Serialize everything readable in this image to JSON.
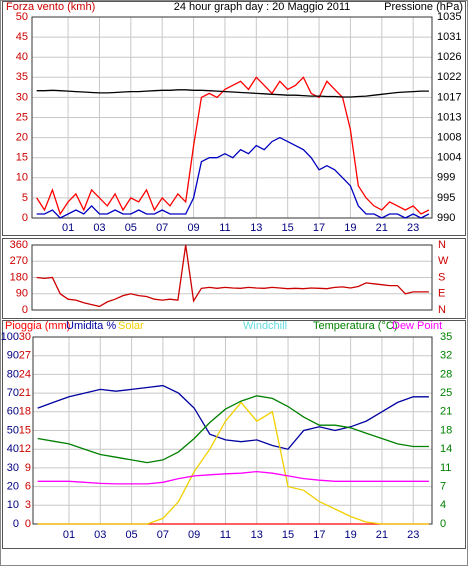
{
  "chart_data": [
    {
      "type": "line",
      "title": "24 hour graph day : 20 Maggio 2011",
      "ylabel": "Forza vento (kmh)",
      "y2label": "Pressione (hPa)",
      "x": [
        -1,
        -0.5,
        0,
        0.5,
        1,
        1.5,
        2,
        2.5,
        3,
        3.5,
        4,
        4.5,
        5,
        5.5,
        6,
        6.5,
        7,
        7.5,
        8,
        8.5,
        9,
        9.5,
        10,
        10.5,
        11,
        11.5,
        12,
        12.5,
        13,
        13.5,
        14,
        14.5,
        15,
        15.5,
        16,
        16.5,
        17,
        17.5,
        18,
        18.5,
        19,
        19.5,
        20,
        20.5,
        21,
        21.5,
        22,
        22.5,
        23,
        23.5,
        24
      ],
      "xlim": [
        -1.3,
        24.2
      ],
      "xticks": [
        {
          "value": 1,
          "label": "01"
        },
        {
          "value": 3,
          "label": "03"
        },
        {
          "value": 5,
          "label": "05"
        },
        {
          "value": 7,
          "label": "07"
        },
        {
          "value": 9,
          "label": "09"
        },
        {
          "value": 11,
          "label": "11"
        },
        {
          "value": 13,
          "label": "13"
        },
        {
          "value": 15,
          "label": "15"
        },
        {
          "value": 17,
          "label": "17"
        },
        {
          "value": 19,
          "label": "19"
        },
        {
          "value": 21,
          "label": "21"
        },
        {
          "value": 23,
          "label": "23"
        }
      ],
      "ylim": [
        0,
        50
      ],
      "yticks": [
        0,
        5,
        10,
        15,
        20,
        25,
        30,
        35,
        40,
        45,
        50
      ],
      "ytick_color": "#cc0000",
      "y2lim": [
        990,
        1035
      ],
      "y2ticks": [
        990,
        {
          "value": 994.5,
          "label": "995"
        },
        999,
        {
          "value": 1003.5,
          "label": "1004"
        },
        1008,
        {
          "value": 1012.5,
          "label": "1013"
        },
        1017,
        {
          "value": 1021.5,
          "label": "1022"
        },
        1026,
        {
          "value": 1030.5,
          "label": "1031"
        },
        1035
      ],
      "y2tick_color": "#000000",
      "grid": true,
      "series": [
        {
          "color": "#ff0000",
          "values": [
            5,
            2,
            7,
            1,
            4,
            6,
            2,
            7,
            5,
            3,
            6,
            2,
            5,
            4,
            7,
            2,
            5,
            3,
            6,
            4,
            18,
            30,
            31,
            30,
            32,
            33,
            34,
            32,
            35,
            33,
            31,
            34,
            32,
            33,
            35,
            31,
            30,
            34,
            32,
            30,
            22,
            8,
            5,
            3,
            2,
            4,
            3,
            2,
            3,
            1,
            2
          ]
        },
        {
          "color": "#0000c0",
          "values": [
            1,
            1,
            2,
            0,
            1,
            2,
            1,
            3,
            1,
            1,
            2,
            1,
            1,
            2,
            1,
            1,
            2,
            1,
            1,
            1,
            5,
            14,
            15,
            15,
            16,
            15,
            17,
            16,
            18,
            17,
            19,
            20,
            19,
            18,
            17,
            15,
            12,
            13,
            12,
            10,
            8,
            3,
            1,
            1,
            0,
            1,
            1,
            0,
            1,
            0,
            1
          ]
        },
        {
          "color": "#000000",
          "axis": "y2",
          "values": [
            1018.5,
            1018.5,
            1018.6,
            1018.5,
            1018.4,
            1018.3,
            1018.2,
            1018.1,
            1018.0,
            1018.0,
            1018.1,
            1018.2,
            1018.3,
            1018.3,
            1018.4,
            1018.5,
            1018.6,
            1018.6,
            1018.7,
            1018.7,
            1018.6,
            1018.6,
            1018.5,
            1018.4,
            1018.3,
            1018.2,
            1018.1,
            1018.0,
            1017.9,
            1017.8,
            1017.7,
            1017.6,
            1017.5,
            1017.5,
            1017.4,
            1017.3,
            1017.3,
            1017.2,
            1017.2,
            1017.1,
            1017.1,
            1017.2,
            1017.3,
            1017.5,
            1017.7,
            1017.9,
            1018.1,
            1018.2,
            1018.3,
            1018.4,
            1018.4
          ]
        }
      ]
    },
    {
      "type": "line",
      "x": [
        -1,
        -0.5,
        0,
        0.5,
        1,
        1.5,
        2,
        2.5,
        3,
        3.5,
        4,
        4.5,
        5,
        5.5,
        6,
        6.5,
        7,
        7.5,
        8,
        8.5,
        9,
        9.5,
        10,
        10.5,
        11,
        11.5,
        12,
        12.5,
        13,
        13.5,
        14,
        14.5,
        15,
        15.5,
        16,
        16.5,
        17,
        17.5,
        18,
        18.5,
        19,
        19.5,
        20,
        20.5,
        21,
        21.5,
        22,
        22.5,
        23,
        23.5,
        24
      ],
      "xlim": [
        -1.3,
        24.2
      ],
      "ylim": [
        0,
        360
      ],
      "yticks": [
        0,
        90,
        180,
        270,
        360
      ],
      "ytick_color": "#cc0000",
      "y2lim": [
        0,
        360
      ],
      "y2ticks": [
        {
          "value": 0,
          "label": "N"
        },
        {
          "value": 90,
          "label": "E"
        },
        {
          "value": 180,
          "label": "S"
        },
        {
          "value": 270,
          "label": "W"
        },
        {
          "value": 360,
          "label": "N"
        }
      ],
      "y2tick_color": "#cc0000",
      "grid": true,
      "series": [
        {
          "color": "#cc0000",
          "values": [
            180,
            175,
            180,
            90,
            60,
            55,
            40,
            30,
            20,
            45,
            60,
            80,
            90,
            80,
            75,
            60,
            55,
            60,
            55,
            360,
            50,
            120,
            125,
            120,
            125,
            122,
            120,
            125,
            122,
            120,
            125,
            122,
            118,
            120,
            118,
            122,
            120,
            118,
            125,
            128,
            122,
            130,
            150,
            145,
            140,
            135,
            135,
            90,
            100,
            100,
            100
          ]
        }
      ]
    },
    {
      "type": "line",
      "windchill_label": {
        "text": "Windchill",
        "color": "#66dddd"
      },
      "x": [
        -1,
        0,
        1,
        2,
        3,
        4,
        5,
        6,
        7,
        8,
        9,
        10,
        11,
        12,
        13,
        14,
        15,
        16,
        17,
        18,
        19,
        20,
        21,
        22,
        23,
        24
      ],
      "xlim": [
        -1.3,
        24.2
      ],
      "xticks": [
        {
          "value": 1,
          "label": "01"
        },
        {
          "value": 3,
          "label": "03"
        },
        {
          "value": 5,
          "label": "05"
        },
        {
          "value": 7,
          "label": "07"
        },
        {
          "value": 9,
          "label": "09"
        },
        {
          "value": 11,
          "label": "11"
        },
        {
          "value": 13,
          "label": "13"
        },
        {
          "value": 15,
          "label": "15"
        },
        {
          "value": 17,
          "label": "17"
        },
        {
          "value": 19,
          "label": "19"
        },
        {
          "value": 21,
          "label": "21"
        },
        {
          "value": 23,
          "label": "23"
        }
      ],
      "ylim": [
        0,
        100
      ],
      "yticks": [
        0,
        10,
        20,
        30,
        40,
        50,
        60,
        70,
        80,
        90,
        100
      ],
      "ytick_color": "#000080",
      "y3lim": [
        0,
        30
      ],
      "y3ticks": [
        0,
        3,
        6,
        9,
        12,
        15,
        18,
        21,
        24,
        27,
        30
      ],
      "y3tick_color": "#cc0000",
      "y2lim": [
        0,
        35
      ],
      "y2ticks": [
        0,
        {
          "value": 3.5,
          "label": "4"
        },
        7,
        {
          "value": 10.5,
          "label": "11"
        },
        14,
        {
          "value": 17.5,
          "label": "18"
        },
        21,
        {
          "value": 24.5,
          "label": "25"
        },
        28,
        {
          "value": 31.5,
          "label": "32"
        },
        35
      ],
      "y2tick_color": "#008000",
      "grid": true,
      "series": [
        {
          "name": "Pioggia (mm)",
          "color": "#ff0000",
          "axis": "y3",
          "values": [
            0,
            0,
            0,
            0,
            0,
            0,
            0,
            0,
            0,
            0,
            0,
            0,
            0,
            0,
            0,
            0,
            0,
            0,
            0,
            0,
            0,
            0,
            0,
            0,
            0,
            0
          ]
        },
        {
          "name": "Umidita %",
          "color": "#0000a0",
          "values": [
            62,
            65,
            68,
            70,
            72,
            71,
            72,
            73,
            74,
            70,
            62,
            48,
            45,
            44,
            45,
            42,
            40,
            50,
            52,
            50,
            52,
            55,
            60,
            65,
            68,
            68
          ]
        },
        {
          "name": "Solar",
          "color": "#f0d000",
          "values": [
            0,
            0,
            0,
            0,
            0,
            0,
            0,
            0,
            3,
            12,
            28,
            40,
            55,
            65,
            55,
            60,
            20,
            18,
            12,
            8,
            4,
            1,
            0,
            0,
            0,
            0
          ]
        },
        {
          "name": "Temperatura (°C)",
          "color": "#008000",
          "axis": "y2",
          "values": [
            16,
            15.5,
            15,
            14,
            13,
            12.5,
            12,
            11.5,
            12,
            13.5,
            16,
            19,
            21.5,
            23,
            24,
            23.5,
            22,
            20,
            18.5,
            18.5,
            18,
            17,
            16,
            15,
            14.5,
            14.5
          ]
        },
        {
          "name": "Dew Point",
          "color": "#ff00ff",
          "axis": "y2",
          "values": [
            8,
            8,
            8,
            7.8,
            7.6,
            7.5,
            7.5,
            7.5,
            7.8,
            8.5,
            9,
            9.2,
            9.4,
            9.5,
            9.8,
            9.5,
            9,
            8.5,
            8.2,
            8,
            8,
            8,
            8,
            8,
            8,
            8
          ]
        }
      ]
    }
  ]
}
